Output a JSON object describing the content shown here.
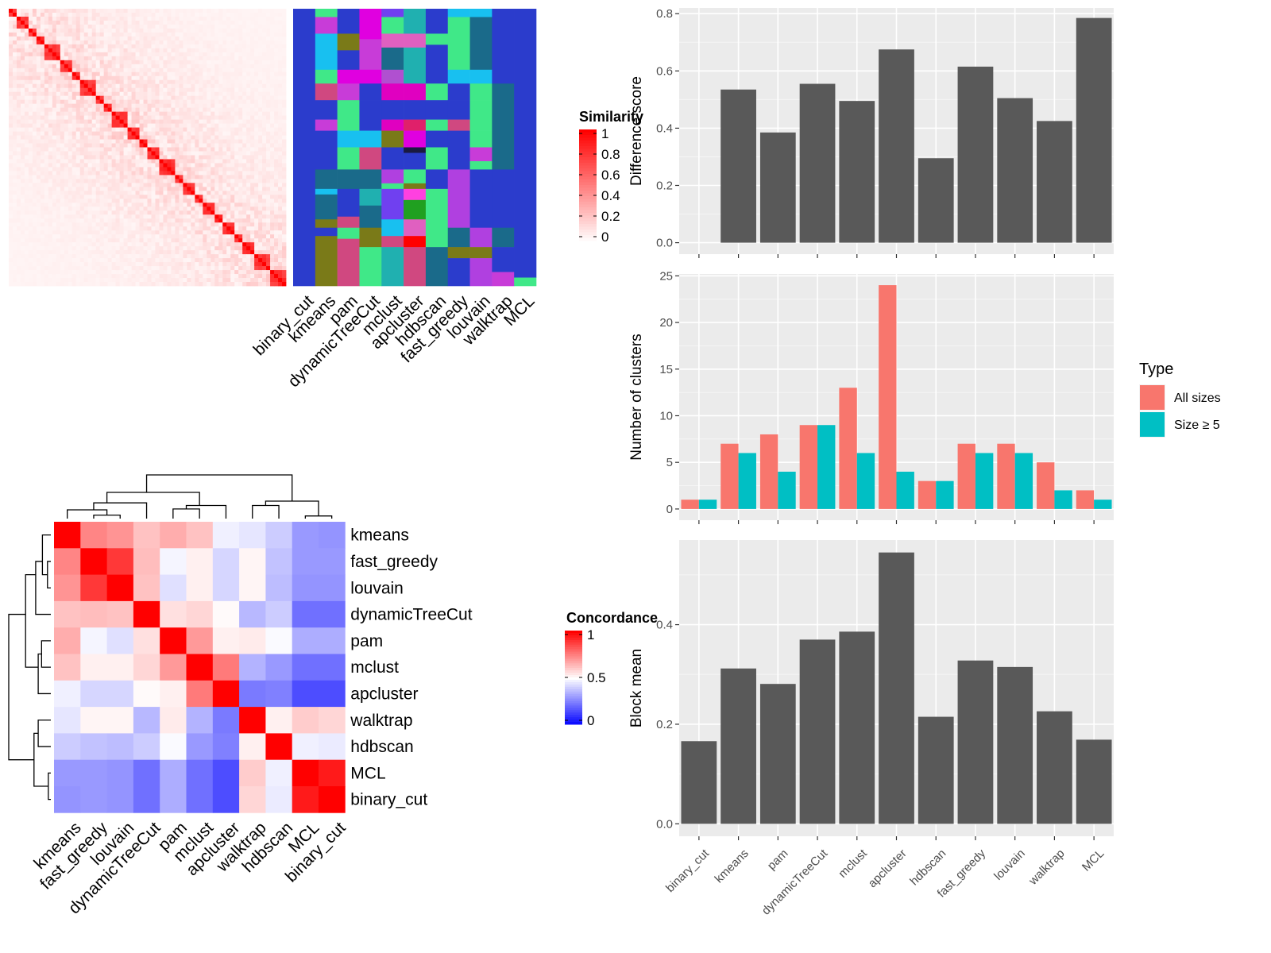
{
  "chart_data": [
    {
      "type": "heatmap",
      "name": "similarity-heatmap",
      "legend_title": "Similarity",
      "legend_ticks": [
        "1",
        "0.8",
        "0.6",
        "0.4",
        "0.2",
        "0"
      ],
      "color_scale": {
        "low": "#ffffff",
        "high": "#ff0000",
        "range": [
          0,
          1
        ]
      },
      "n_terms": 70,
      "block_sizes": [
        2,
        3,
        2,
        2,
        4,
        3,
        2,
        4,
        2,
        2,
        4,
        3,
        2,
        3,
        4,
        2,
        3,
        2,
        3,
        2,
        3,
        2,
        3,
        4,
        3
      ],
      "annotation_columns": [
        "binary_cut",
        "kmeans",
        "pam",
        "dynamicTreeCut",
        "mclust",
        "apcluster",
        "hdbscan",
        "fast_greedy",
        "louvain",
        "walktrap",
        "MCL"
      ],
      "annotation_segments": [
        [
          [
            0.0,
            1.0,
            "#2b3ccc"
          ]
        ],
        [
          [
            0.0,
            0.03,
            "#40e888"
          ],
          [
            0.03,
            0.09,
            "#c83cd8"
          ],
          [
            0.09,
            0.22,
            "#18c0f0"
          ],
          [
            0.22,
            0.27,
            "#40e888"
          ],
          [
            0.27,
            0.33,
            "#d04880"
          ],
          [
            0.33,
            0.4,
            "#2b3ccc"
          ],
          [
            0.4,
            0.44,
            "#c83cd8"
          ],
          [
            0.44,
            0.58,
            "#2b3ccc"
          ],
          [
            0.58,
            0.65,
            "#1a6a8a"
          ],
          [
            0.65,
            0.67,
            "#18c0f0"
          ],
          [
            0.67,
            0.76,
            "#1a6a8a"
          ],
          [
            0.76,
            0.79,
            "#7a7a18"
          ],
          [
            0.79,
            0.82,
            "#2b3ccc"
          ],
          [
            0.82,
            1.0,
            "#7a7a18"
          ]
        ],
        [
          [
            0.0,
            0.09,
            "#2b3ccc"
          ],
          [
            0.09,
            0.15,
            "#7a7a18"
          ],
          [
            0.15,
            0.22,
            "#2b3ccc"
          ],
          [
            0.22,
            0.27,
            "#e000e0"
          ],
          [
            0.27,
            0.33,
            "#c83cd8"
          ],
          [
            0.33,
            0.44,
            "#40e888"
          ],
          [
            0.44,
            0.5,
            "#18c0f0"
          ],
          [
            0.5,
            0.58,
            "#40e888"
          ],
          [
            0.58,
            0.65,
            "#1a6a8a"
          ],
          [
            0.65,
            0.75,
            "#2b3ccc"
          ],
          [
            0.75,
            0.79,
            "#d04880"
          ],
          [
            0.79,
            0.83,
            "#40e888"
          ],
          [
            0.83,
            1.0,
            "#d04880"
          ]
        ],
        [
          [
            0.0,
            0.11,
            "#e000e0"
          ],
          [
            0.11,
            0.22,
            "#c83cd8"
          ],
          [
            0.22,
            0.27,
            "#e000e0"
          ],
          [
            0.27,
            0.33,
            "#2b3ccc"
          ],
          [
            0.33,
            0.44,
            "#2b3ccc"
          ],
          [
            0.44,
            0.5,
            "#18c0f0"
          ],
          [
            0.5,
            0.58,
            "#d04880"
          ],
          [
            0.58,
            0.65,
            "#1a6a8a"
          ],
          [
            0.65,
            0.71,
            "#20b0b0"
          ],
          [
            0.71,
            0.79,
            "#1a6a8a"
          ],
          [
            0.79,
            0.86,
            "#7a7a18"
          ],
          [
            0.86,
            1.0,
            "#40e888"
          ]
        ],
        [
          [
            0.0,
            0.03,
            "#7040f0"
          ],
          [
            0.03,
            0.09,
            "#40e888"
          ],
          [
            0.09,
            0.14,
            "#e060c0"
          ],
          [
            0.14,
            0.22,
            "#1a6a8a"
          ],
          [
            0.22,
            0.27,
            "#b050d0"
          ],
          [
            0.27,
            0.33,
            "#e000c0"
          ],
          [
            0.33,
            0.4,
            "#2b3ccc"
          ],
          [
            0.4,
            0.44,
            "#e000c0"
          ],
          [
            0.44,
            0.5,
            "#7a7a18"
          ],
          [
            0.5,
            0.58,
            "#2b3ccc"
          ],
          [
            0.58,
            0.63,
            "#b040e0"
          ],
          [
            0.63,
            0.65,
            "#40e888"
          ],
          [
            0.65,
            0.67,
            "#7040f0"
          ],
          [
            0.67,
            0.76,
            "#7040f0"
          ],
          [
            0.76,
            0.82,
            "#18c0f0"
          ],
          [
            0.82,
            0.86,
            "#d04880"
          ],
          [
            0.86,
            1.0,
            "#20b0b0"
          ]
        ],
        [
          [
            0.0,
            0.03,
            "#20b0b0"
          ],
          [
            0.03,
            0.09,
            "#20b0b0"
          ],
          [
            0.09,
            0.14,
            "#e060c0"
          ],
          [
            0.14,
            0.22,
            "#20b0b0"
          ],
          [
            0.22,
            0.27,
            "#20b0b0"
          ],
          [
            0.27,
            0.33,
            "#e000c0"
          ],
          [
            0.33,
            0.4,
            "#2b3ccc"
          ],
          [
            0.4,
            0.44,
            "#e0206a"
          ],
          [
            0.44,
            0.5,
            "#e000e0"
          ],
          [
            0.5,
            0.52,
            "#1a1a40"
          ],
          [
            0.52,
            0.58,
            "#2b3ccc"
          ],
          [
            0.58,
            0.63,
            "#40e888"
          ],
          [
            0.63,
            0.65,
            "#7a7a18"
          ],
          [
            0.65,
            0.69,
            "#ff40e0"
          ],
          [
            0.69,
            0.76,
            "#20a020"
          ],
          [
            0.76,
            0.82,
            "#e060c0"
          ],
          [
            0.82,
            0.86,
            "#ff0000"
          ],
          [
            0.86,
            1.0,
            "#d04880"
          ]
        ],
        [
          [
            0.0,
            0.09,
            "#2b3ccc"
          ],
          [
            0.09,
            0.13,
            "#40e888"
          ],
          [
            0.13,
            0.27,
            "#2b3ccc"
          ],
          [
            0.27,
            0.33,
            "#40e888"
          ],
          [
            0.33,
            0.4,
            "#2b3ccc"
          ],
          [
            0.4,
            0.44,
            "#40e888"
          ],
          [
            0.44,
            0.5,
            "#2b3ccc"
          ],
          [
            0.5,
            0.58,
            "#40e888"
          ],
          [
            0.58,
            0.65,
            "#2b3ccc"
          ],
          [
            0.65,
            0.71,
            "#40e888"
          ],
          [
            0.71,
            0.76,
            "#40e888"
          ],
          [
            0.76,
            0.86,
            "#40e888"
          ],
          [
            0.86,
            1.0,
            "#1a6a8a"
          ]
        ],
        [
          [
            0.0,
            0.03,
            "#18c0f0"
          ],
          [
            0.03,
            0.22,
            "#40e888"
          ],
          [
            0.22,
            0.27,
            "#18c0f0"
          ],
          [
            0.27,
            0.33,
            "#2b3ccc"
          ],
          [
            0.33,
            0.4,
            "#2b3ccc"
          ],
          [
            0.4,
            0.44,
            "#d04880"
          ],
          [
            0.44,
            0.58,
            "#2b3ccc"
          ],
          [
            0.58,
            0.65,
            "#b040e0"
          ],
          [
            0.65,
            0.79,
            "#b040e0"
          ],
          [
            0.79,
            0.86,
            "#1a6a8a"
          ],
          [
            0.86,
            0.9,
            "#7a7a18"
          ],
          [
            0.9,
            1.0,
            "#2b3ccc"
          ]
        ],
        [
          [
            0.0,
            0.03,
            "#18c0f0"
          ],
          [
            0.03,
            0.22,
            "#1a6a8a"
          ],
          [
            0.22,
            0.27,
            "#18c0f0"
          ],
          [
            0.27,
            0.33,
            "#40e888"
          ],
          [
            0.33,
            0.44,
            "#40e888"
          ],
          [
            0.44,
            0.5,
            "#40e888"
          ],
          [
            0.5,
            0.55,
            "#c83cd8"
          ],
          [
            0.55,
            0.58,
            "#40e888"
          ],
          [
            0.58,
            0.79,
            "#2b3ccc"
          ],
          [
            0.79,
            0.86,
            "#b040e0"
          ],
          [
            0.86,
            0.9,
            "#7a7a18"
          ],
          [
            0.9,
            1.0,
            "#b040e0"
          ]
        ],
        [
          [
            0.0,
            0.27,
            "#2b3ccc"
          ],
          [
            0.27,
            0.58,
            "#1a6a8a"
          ],
          [
            0.58,
            0.79,
            "#2b3ccc"
          ],
          [
            0.79,
            0.86,
            "#1a6a8a"
          ],
          [
            0.86,
            0.95,
            "#2b3ccc"
          ],
          [
            0.95,
            1.0,
            "#c83cd8"
          ]
        ],
        [
          [
            0.0,
            0.97,
            "#2b3ccc"
          ],
          [
            0.97,
            1.0,
            "#40e888"
          ]
        ]
      ]
    },
    {
      "type": "heatmap",
      "name": "concordance-heatmap",
      "legend_title": "Concordance",
      "legend_ticks": [
        "1",
        "0.5",
        "0"
      ],
      "color_scale": {
        "low": "#0000ff",
        "mid": "#ffffff",
        "high": "#ff0000",
        "range": [
          0,
          1
        ]
      },
      "labels": [
        "kmeans",
        "fast_greedy",
        "louvain",
        "dynamicTreeCut",
        "pam",
        "mclust",
        "apcluster",
        "walktrap",
        "hdbscan",
        "MCL",
        "binary_cut"
      ],
      "values": [
        [
          1.0,
          0.74,
          0.71,
          0.62,
          0.66,
          0.62,
          0.47,
          0.45,
          0.4,
          0.3,
          0.29
        ],
        [
          0.74,
          1.0,
          0.89,
          0.63,
          0.48,
          0.53,
          0.42,
          0.52,
          0.38,
          0.3,
          0.3
        ],
        [
          0.71,
          0.89,
          1.0,
          0.62,
          0.44,
          0.53,
          0.42,
          0.52,
          0.37,
          0.29,
          0.29
        ],
        [
          0.62,
          0.63,
          0.62,
          1.0,
          0.56,
          0.58,
          0.51,
          0.36,
          0.4,
          0.22,
          0.22
        ],
        [
          0.66,
          0.48,
          0.44,
          0.56,
          1.0,
          0.7,
          0.53,
          0.54,
          0.49,
          0.34,
          0.34
        ],
        [
          0.62,
          0.53,
          0.53,
          0.58,
          0.7,
          1.0,
          0.76,
          0.35,
          0.3,
          0.22,
          0.22
        ],
        [
          0.47,
          0.42,
          0.42,
          0.51,
          0.53,
          0.76,
          1.0,
          0.24,
          0.25,
          0.15,
          0.15
        ],
        [
          0.45,
          0.52,
          0.52,
          0.36,
          0.54,
          0.35,
          0.24,
          1.0,
          0.53,
          0.6,
          0.58
        ],
        [
          0.4,
          0.38,
          0.37,
          0.4,
          0.49,
          0.3,
          0.25,
          0.53,
          1.0,
          0.47,
          0.46
        ],
        [
          0.3,
          0.3,
          0.29,
          0.22,
          0.34,
          0.22,
          0.15,
          0.6,
          0.47,
          1.0,
          0.95
        ],
        [
          0.29,
          0.3,
          0.29,
          0.22,
          0.34,
          0.22,
          0.15,
          0.58,
          0.46,
          0.95,
          1.0
        ]
      ]
    },
    {
      "type": "bar",
      "name": "difference-score",
      "categories": [
        "binary_cut",
        "kmeans",
        "pam",
        "dynamicTreeCut",
        "mclust",
        "apcluster",
        "hdbscan",
        "fast_greedy",
        "louvain",
        "walktrap",
        "MCL"
      ],
      "values": [
        0.0,
        0.535,
        0.385,
        0.555,
        0.495,
        0.675,
        0.295,
        0.615,
        0.505,
        0.425,
        0.785
      ],
      "ylabel": "Difference score",
      "ylim": [
        -0.04,
        0.82
      ],
      "yticks": [
        "0.0",
        "0.2",
        "0.4",
        "0.6",
        "0.8"
      ],
      "ytick_values": [
        0,
        0.2,
        0.4,
        0.6,
        0.8
      ],
      "bar_color": "#595959"
    },
    {
      "type": "bar",
      "name": "number-of-clusters",
      "categories": [
        "binary_cut",
        "kmeans",
        "pam",
        "dynamicTreeCut",
        "mclust",
        "apcluster",
        "hdbscan",
        "fast_greedy",
        "louvain",
        "walktrap",
        "MCL"
      ],
      "series": [
        {
          "name": "All sizes",
          "color": "#f8766d",
          "values": [
            1,
            7,
            8,
            9,
            13,
            24,
            3,
            7,
            7,
            5,
            2
          ]
        },
        {
          "name": "Size ≥ 5",
          "color": "#00bfc4",
          "values": [
            1,
            6,
            4,
            9,
            6,
            4,
            3,
            6,
            6,
            2,
            1
          ]
        }
      ],
      "ylabel": "Number of clusters",
      "ylim": [
        -1.2,
        25.2
      ],
      "yticks": [
        "0",
        "5",
        "10",
        "15",
        "20",
        "25"
      ],
      "ytick_values": [
        0,
        5,
        10,
        15,
        20,
        25
      ],
      "legend_title": "Type",
      "legend_position": "right"
    },
    {
      "type": "bar",
      "name": "block-mean",
      "categories": [
        "binary_cut",
        "kmeans",
        "pam",
        "dynamicTreeCut",
        "mclust",
        "apcluster",
        "hdbscan",
        "fast_greedy",
        "louvain",
        "walktrap",
        "MCL"
      ],
      "values": [
        0.166,
        0.312,
        0.281,
        0.37,
        0.386,
        0.545,
        0.215,
        0.328,
        0.315,
        0.226,
        0.169
      ],
      "ylabel": "Block mean",
      "ylim": [
        -0.025,
        0.57
      ],
      "yticks": [
        "0.0",
        "0.2",
        "0.4"
      ],
      "ytick_values": [
        0,
        0.2,
        0.4
      ],
      "bar_color": "#595959"
    }
  ]
}
